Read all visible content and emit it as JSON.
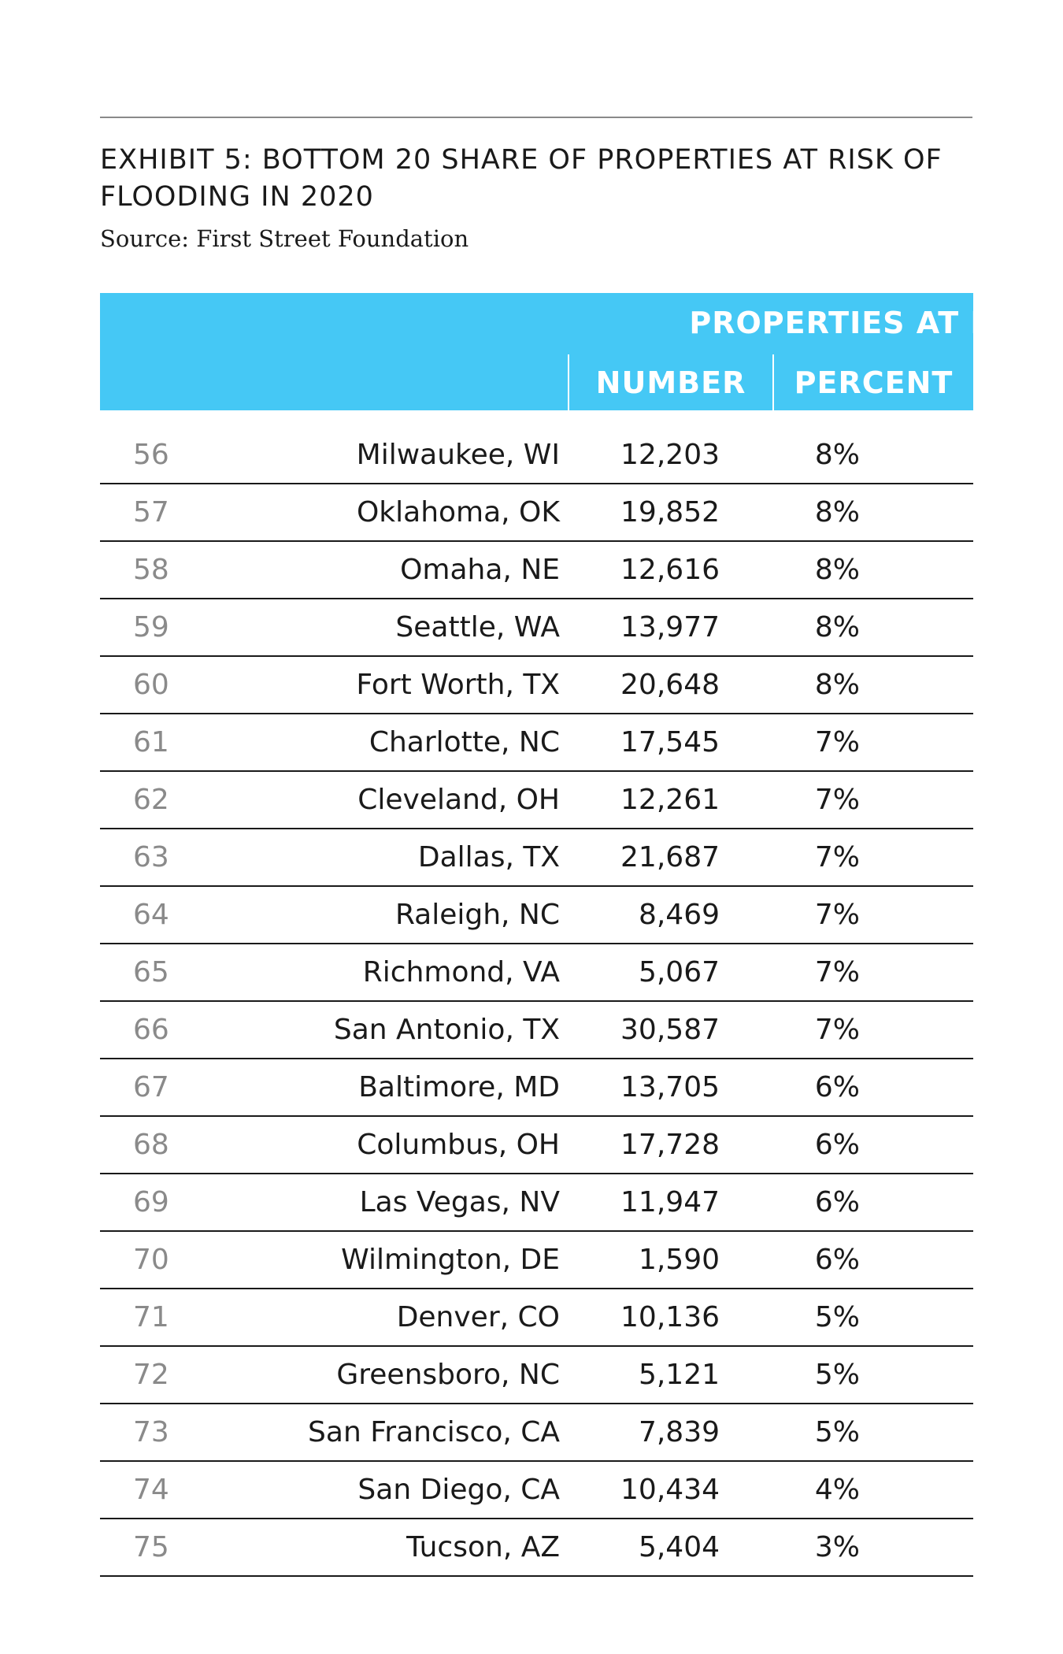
{
  "exhibit": {
    "title": "EXHIBIT 5: BOTTOM 20 SHARE OF PROPERTIES AT RISK OF FLOODING IN 2020",
    "source": "Source: First Street Foundation"
  },
  "table": {
    "group_header": "PROPERTIES AT RISK",
    "columns": [
      "",
      "",
      "NUMBER",
      "PERCENT"
    ],
    "rows": [
      {
        "rank": "56",
        "city": "Milwaukee, WI",
        "number": "12,203",
        "percent": "8%"
      },
      {
        "rank": "57",
        "city": "Oklahoma, OK",
        "number": "19,852",
        "percent": "8%"
      },
      {
        "rank": "58",
        "city": "Omaha, NE",
        "number": "12,616",
        "percent": "8%"
      },
      {
        "rank": "59",
        "city": "Seattle, WA",
        "number": "13,977",
        "percent": "8%"
      },
      {
        "rank": "60",
        "city": "Fort Worth, TX",
        "number": "20,648",
        "percent": "8%"
      },
      {
        "rank": "61",
        "city": "Charlotte, NC",
        "number": "17,545",
        "percent": "7%"
      },
      {
        "rank": "62",
        "city": "Cleveland, OH",
        "number": "12,261",
        "percent": "7%"
      },
      {
        "rank": "63",
        "city": "Dallas, TX",
        "number": "21,687",
        "percent": "7%"
      },
      {
        "rank": "64",
        "city": "Raleigh, NC",
        "number": "8,469",
        "percent": "7%"
      },
      {
        "rank": "65",
        "city": "Richmond, VA",
        "number": "5,067",
        "percent": "7%"
      },
      {
        "rank": "66",
        "city": "San Antonio, TX",
        "number": "30,587",
        "percent": "7%"
      },
      {
        "rank": "67",
        "city": "Baltimore, MD",
        "number": "13,705",
        "percent": "6%"
      },
      {
        "rank": "68",
        "city": "Columbus, OH",
        "number": "17,728",
        "percent": "6%"
      },
      {
        "rank": "69",
        "city": "Las Vegas, NV",
        "number": "11,947",
        "percent": "6%"
      },
      {
        "rank": "70",
        "city": "Wilmington, DE",
        "number": "1,590",
        "percent": "6%"
      },
      {
        "rank": "71",
        "city": "Denver, CO",
        "number": "10,136",
        "percent": "5%"
      },
      {
        "rank": "72",
        "city": "Greensboro, NC",
        "number": "5,121",
        "percent": "5%"
      },
      {
        "rank": "73",
        "city": "San Francisco, CA",
        "number": "7,839",
        "percent": "5%"
      },
      {
        "rank": "74",
        "city": "San Diego, CA",
        "number": "10,434",
        "percent": "4%"
      },
      {
        "rank": "75",
        "city": "Tucson, AZ",
        "number": "5,404",
        "percent": "3%"
      }
    ]
  },
  "colors": {
    "header_background": "#45c8f5",
    "header_text": "#ffffff",
    "rank_text": "#8a8a8a",
    "body_text": "#1a1a1a"
  }
}
